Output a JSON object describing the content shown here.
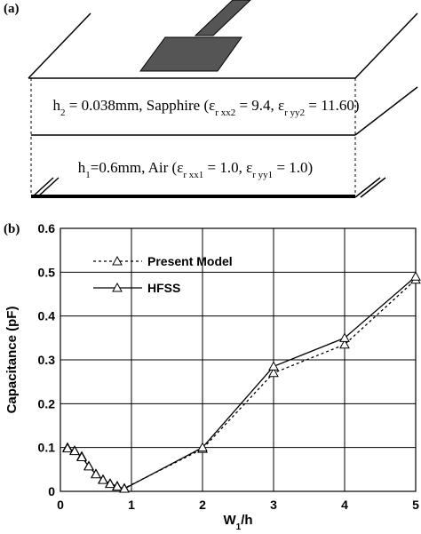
{
  "panel_labels": [
    "(a)",
    "(b)"
  ],
  "layers": [
    {
      "parts": [
        "h",
        "2",
        " = 0.038mm, Sapphire (ε",
        "r xx2",
        " = 9.4, ε",
        "r yy2",
        " = 11.60)"
      ]
    },
    {
      "parts": [
        "h",
        "1",
        "=0.6mm, Air (ε",
        "r xx1",
        " = 1.0, ε",
        "r yy1",
        " = 1.0)"
      ]
    }
  ],
  "chart_data": {
    "type": "line",
    "x_label_parts": [
      "W",
      "1",
      "/h"
    ],
    "y_label": "Capacitance (pF)",
    "x": [
      0.1,
      0.2,
      0.3,
      0.4,
      0.5,
      0.6,
      0.7,
      0.8,
      0.9,
      2,
      3,
      4,
      5
    ],
    "series": [
      {
        "name": "Present Model",
        "color": "#000",
        "dash": true,
        "values": [
          0.1,
          0.093,
          0.08,
          0.058,
          0.04,
          0.027,
          0.018,
          0.012,
          0.007,
          0.097,
          0.27,
          0.335,
          0.483
        ]
      },
      {
        "name": "HFSS",
        "color": "#000",
        "dash": false,
        "values": [
          0.098,
          0.092,
          0.078,
          0.057,
          0.039,
          0.026,
          0.017,
          0.011,
          0.006,
          0.1,
          0.285,
          0.35,
          0.49
        ]
      }
    ],
    "xlim": [
      0,
      5
    ],
    "xticks": [
      0,
      1,
      2,
      3,
      4,
      5
    ],
    "ylim": [
      0,
      0.6
    ],
    "yticks": [
      0,
      0.1,
      0.2,
      0.3,
      0.4,
      0.5,
      0.6
    ],
    "grid": true
  }
}
